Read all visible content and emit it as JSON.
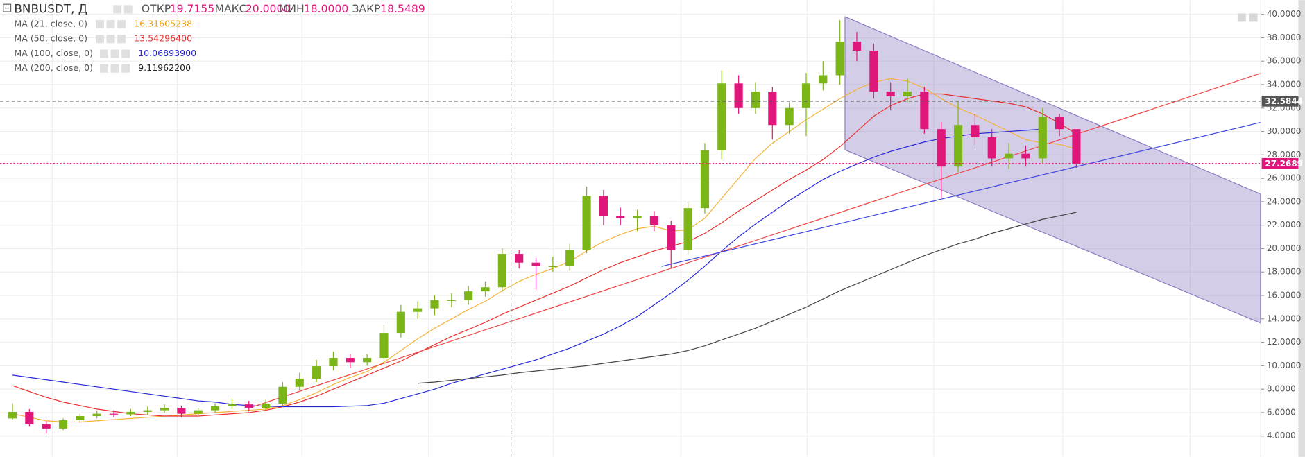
{
  "chart_data": {
    "type": "candlestick",
    "header": {
      "symbol": "BNBUSDT, Д",
      "ohlc": [
        {
          "label": "ОТКР",
          "value": "19.7155"
        },
        {
          "label": "МАКС",
          "value": "20.0000"
        },
        {
          "label": "МИН",
          "value": "18.0000"
        },
        {
          "label": "ЗАКР",
          "value": "18.5489"
        }
      ]
    },
    "ylim": [
      2.22,
      41.21
    ],
    "yticks": [
      {
        "value": 4,
        "label": "4.0000"
      },
      {
        "value": 6,
        "label": "6.0000"
      },
      {
        "value": 8,
        "label": "8.0000"
      },
      {
        "value": 10,
        "label": "10.0000"
      },
      {
        "value": 12,
        "label": "12.0000"
      },
      {
        "value": 14,
        "label": "14.0000"
      },
      {
        "value": 16,
        "label": "16.0000"
      },
      {
        "value": 18,
        "label": "18.0000"
      },
      {
        "value": 20,
        "label": "20.0000"
      },
      {
        "value": 22,
        "label": "22.0000"
      },
      {
        "value": 24,
        "label": "24.0000"
      },
      {
        "value": 26,
        "label": "26.0000"
      },
      {
        "value": 28,
        "label": "28.0000"
      },
      {
        "value": 30,
        "label": "30.0000"
      },
      {
        "value": 32,
        "label": "32.0000"
      },
      {
        "value": 34,
        "label": "34.0000"
      },
      {
        "value": 36,
        "label": "36.0000"
      },
      {
        "value": 38,
        "label": "38.0000"
      },
      {
        "value": 40,
        "label": "40.0000"
      }
    ],
    "grid": true,
    "candles": {
      "up_color": "#7cb518",
      "down_color": "#e0177b",
      "open": [
        5.5,
        6.06,
        5.0,
        4.64,
        5.35,
        5.7,
        5.9,
        5.85,
        6.06,
        6.2,
        6.4,
        5.9,
        6.2,
        6.55,
        6.7,
        6.4,
        6.77,
        8.2,
        8.9,
        9.96,
        10.67,
        10.3,
        10.67,
        12.8,
        14.6,
        14.9,
        15.6,
        15.6,
        16.35,
        16.7,
        19.55,
        18.8,
        18.5,
        18.5,
        19.9,
        24.5,
        22.75,
        22.6,
        22.75,
        22.0,
        19.9,
        23.45,
        28.4,
        34.1,
        32.0,
        33.4,
        30.55,
        32.0,
        34.1,
        34.8,
        37.66,
        36.9,
        33.4,
        33.0,
        33.4,
        30.2,
        27.0,
        30.55,
        29.5,
        27.7,
        28.1,
        27.7,
        31.27,
        30.2
      ],
      "high": [
        6.8,
        6.3,
        5.3,
        5.5,
        5.9,
        6.2,
        6.2,
        6.3,
        6.5,
        6.7,
        6.6,
        6.4,
        6.8,
        7.2,
        7.0,
        7.1,
        8.6,
        9.4,
        10.5,
        11.2,
        11.0,
        11.0,
        13.5,
        15.2,
        15.5,
        16.0,
        16.2,
        16.8,
        17.2,
        20.0,
        19.9,
        19.2,
        19.3,
        20.4,
        25.3,
        25.0,
        23.5,
        23.3,
        23.2,
        22.4,
        24.0,
        29.0,
        35.2,
        34.8,
        34.2,
        33.8,
        32.5,
        35.0,
        36.0,
        39.5,
        38.5,
        37.5,
        34.2,
        34.5,
        33.8,
        30.8,
        32.6,
        31.5,
        30.2,
        29.0,
        28.8,
        32.0,
        31.5,
        28.5
      ],
      "low": [
        5.4,
        4.8,
        4.2,
        4.5,
        5.1,
        5.5,
        5.6,
        5.7,
        5.8,
        6.0,
        5.6,
        5.7,
        6.0,
        6.3,
        6.1,
        6.2,
        6.5,
        7.9,
        8.6,
        9.6,
        9.8,
        10.0,
        10.4,
        12.4,
        14.0,
        14.3,
        15.0,
        15.2,
        15.9,
        16.3,
        18.3,
        16.5,
        18.0,
        18.1,
        19.6,
        22.0,
        22.0,
        21.5,
        21.5,
        18.3,
        19.5,
        23.0,
        27.6,
        31.5,
        31.5,
        29.3,
        29.8,
        29.6,
        33.5,
        34.0,
        36.0,
        32.8,
        31.8,
        32.5,
        29.8,
        24.3,
        26.5,
        28.8,
        27.0,
        26.8,
        27.0,
        27.3,
        29.6,
        26.9
      ],
      "close": [
        6.06,
        5.0,
        4.64,
        5.35,
        5.7,
        5.9,
        5.85,
        6.06,
        6.2,
        6.4,
        5.9,
        6.2,
        6.55,
        6.7,
        6.4,
        6.77,
        8.2,
        8.9,
        9.96,
        10.67,
        10.3,
        10.67,
        12.8,
        14.6,
        14.9,
        15.6,
        15.6,
        16.35,
        16.7,
        19.55,
        18.8,
        18.5,
        18.5,
        19.9,
        24.5,
        22.75,
        22.6,
        22.75,
        22.0,
        19.9,
        23.45,
        28.4,
        34.1,
        32.0,
        33.4,
        30.55,
        32.0,
        34.1,
        34.8,
        37.66,
        36.9,
        33.4,
        33.0,
        33.4,
        30.2,
        27.0,
        30.55,
        29.5,
        27.7,
        28.1,
        27.7,
        31.27,
        30.2,
        27.2
      ]
    },
    "series": [
      {
        "name": "MA (21, close, 0)",
        "color": "#f5b335",
        "legend_value": "16.31605238",
        "values": [
          5.9,
          5.6,
          5.3,
          5.2,
          5.2,
          5.3,
          5.4,
          5.5,
          5.6,
          5.7,
          5.8,
          5.9,
          6.0,
          6.1,
          6.2,
          6.3,
          6.6,
          7.1,
          7.7,
          8.4,
          9.0,
          9.5,
          10.3,
          11.3,
          12.3,
          13.2,
          14.0,
          14.8,
          15.5,
          16.4,
          17.2,
          17.8,
          18.3,
          18.9,
          19.8,
          20.6,
          21.2,
          21.7,
          21.9,
          21.5,
          21.6,
          22.6,
          24.3,
          26.0,
          27.7,
          29.0,
          30.0,
          31.0,
          31.9,
          32.8,
          33.6,
          34.2,
          34.5,
          34.3,
          33.7,
          32.8,
          32.0,
          31.4,
          30.7,
          30.0,
          29.3,
          29.0,
          28.9,
          28.5
        ]
      },
      {
        "name": "MA (50, close, 0)",
        "color": "#e8302f",
        "legend_value": "13.54296400",
        "values": [
          8.3,
          7.8,
          7.3,
          6.9,
          6.6,
          6.3,
          6.1,
          5.9,
          5.8,
          5.7,
          5.7,
          5.7,
          5.8,
          5.9,
          6.0,
          6.2,
          6.5,
          6.9,
          7.4,
          8.0,
          8.6,
          9.2,
          9.8,
          10.4,
          11.1,
          11.8,
          12.5,
          13.1,
          13.7,
          14.4,
          15.0,
          15.6,
          16.2,
          16.8,
          17.5,
          18.2,
          18.8,
          19.3,
          19.8,
          20.2,
          20.6,
          21.3,
          22.2,
          23.2,
          24.1,
          25.0,
          25.9,
          26.7,
          27.6,
          28.7,
          30.0,
          31.3,
          32.2,
          32.8,
          33.2,
          33.2,
          33.0,
          32.8,
          32.6,
          32.4,
          32.1,
          31.5,
          30.7,
          29.8
        ]
      },
      {
        "name": "MA (100, close, 0)",
        "color": "#2727d9",
        "legend_value": "10.06893900",
        "values": [
          9.2,
          9.0,
          8.8,
          8.6,
          8.4,
          8.2,
          8.0,
          7.8,
          7.6,
          7.4,
          7.2,
          7.0,
          6.9,
          6.7,
          6.6,
          6.55,
          6.5,
          6.5,
          6.5,
          6.5,
          6.55,
          6.6,
          6.8,
          7.2,
          7.6,
          8.0,
          8.5,
          8.9,
          9.3,
          9.7,
          10.1,
          10.5,
          11.0,
          11.5,
          12.1,
          12.7,
          13.4,
          14.2,
          15.2,
          16.2,
          17.3,
          18.5,
          19.8,
          21.0,
          22.1,
          23.1,
          24.1,
          25.0,
          25.9,
          26.6,
          27.2,
          27.8,
          28.3,
          28.7,
          29.1,
          29.4,
          29.6,
          29.8,
          29.9,
          30.0,
          30.1,
          30.2,
          null,
          null
        ]
      },
      {
        "name": "MA (200, close, 0)",
        "color": "#444444",
        "legend_value": "9.11962200",
        "values": [
          null,
          null,
          null,
          null,
          null,
          null,
          null,
          null,
          null,
          null,
          null,
          null,
          null,
          null,
          null,
          null,
          null,
          null,
          null,
          null,
          null,
          null,
          null,
          null,
          8.5,
          8.6,
          8.75,
          8.9,
          9.05,
          9.2,
          9.4,
          9.55,
          9.7,
          9.85,
          10.0,
          10.2,
          10.4,
          10.6,
          10.8,
          11.0,
          11.3,
          11.7,
          12.2,
          12.7,
          13.2,
          13.8,
          14.4,
          15.0,
          15.7,
          16.4,
          17.0,
          17.6,
          18.2,
          18.8,
          19.4,
          19.9,
          20.4,
          20.8,
          21.3,
          21.7,
          22.1,
          22.5,
          22.8,
          23.1
        ]
      }
    ],
    "legend_values_colors": [
      "#f0a000",
      "#e8302f",
      "#2727d9",
      "#222222"
    ],
    "trend_lines": [
      {
        "color": "#f04848",
        "x": [
          14.05,
          73.9
        ],
        "y": [
          6.41,
          34.96
        ]
      },
      {
        "color": "#3f46e0",
        "x": [
          38.44,
          73.9
        ],
        "y": [
          18.48,
          30.77
        ]
      }
    ],
    "channel": {
      "color": "#8e7cc3",
      "x": [
        49.3,
        73.9
      ],
      "upper": [
        39.79,
        24.66
      ],
      "lower": [
        28.43,
        13.65
      ]
    },
    "price_lines": [
      {
        "value": 32.5844,
        "color": "#555555"
      },
      {
        "value": 27.2689,
        "color": "#e0177b"
      }
    ]
  }
}
